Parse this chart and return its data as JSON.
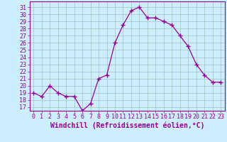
{
  "x": [
    0,
    1,
    2,
    3,
    4,
    5,
    6,
    7,
    8,
    9,
    10,
    11,
    12,
    13,
    14,
    15,
    16,
    17,
    18,
    19,
    20,
    21,
    22,
    23
  ],
  "y": [
    19,
    18.5,
    20,
    19,
    18.5,
    18.5,
    16.5,
    17.5,
    21,
    21.5,
    26,
    28.5,
    30.5,
    31,
    29.5,
    29.5,
    29,
    28.5,
    27,
    25.5,
    23,
    21.5,
    20.5,
    20.5
  ],
  "line_color": "#990099",
  "marker": "+",
  "marker_size": 4,
  "bg_color": "#cceeff",
  "grid_color": "#aacccc",
  "xlabel": "Windchill (Refroidissement éolien,°C)",
  "xlabel_fontsize": 7,
  "ylabel_ticks": [
    17,
    18,
    19,
    20,
    21,
    22,
    23,
    24,
    25,
    26,
    27,
    28,
    29,
    30,
    31
  ],
  "xlim": [
    -0.5,
    23.5
  ],
  "ylim": [
    16.5,
    31.8
  ],
  "tick_fontsize": 6,
  "label_color": "#990099"
}
